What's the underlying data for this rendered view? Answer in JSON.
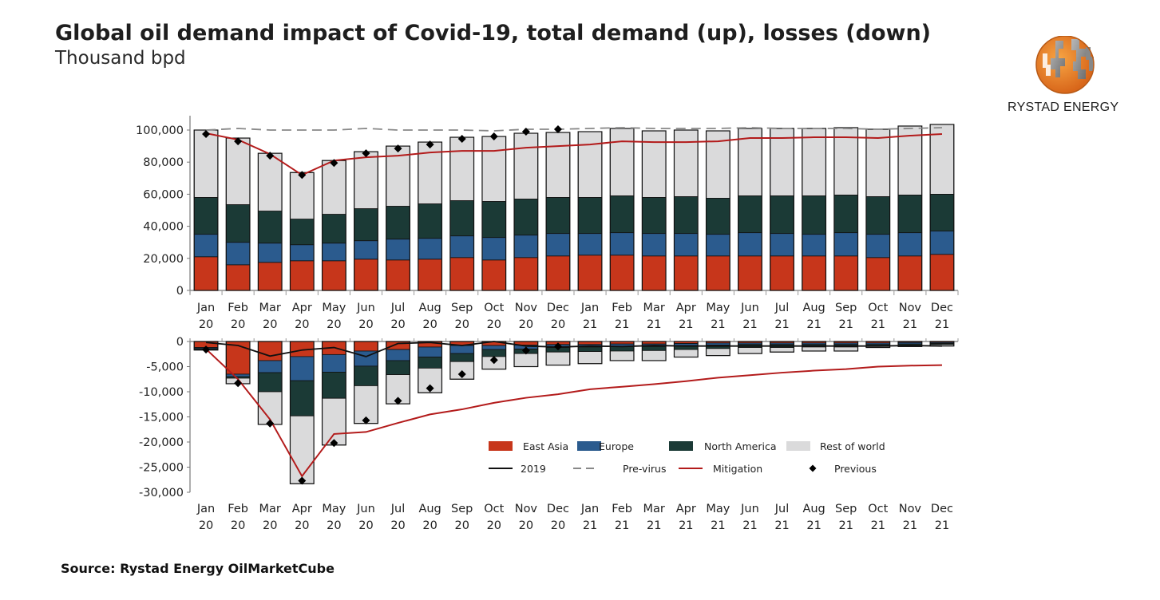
{
  "header": {
    "title": "Global oil demand impact of Covid-19, total demand (up), losses (down)",
    "subtitle": "Thousand bpd"
  },
  "logo": {
    "text": "RYSTAD ENERGY",
    "icon": "rystad-globe-icon"
  },
  "source": "Source: Rystad Energy OilMarketCube",
  "colors": {
    "east_asia": "#c7361b",
    "europe": "#2b5b8e",
    "north_america": "#1b3a36",
    "rest_of_world": "#dadadb",
    "line_2019": "#111111",
    "pre_virus": "#888888",
    "mitigation": "#b31b1b",
    "previous": "#000000"
  },
  "chart_data": [
    {
      "type": "bar",
      "stacked": true,
      "title": "Total demand",
      "ylabel": "Thousand bpd",
      "ylim": [
        0,
        100000
      ],
      "yticks": [
        "0",
        "20,000",
        "40,000",
        "60,000",
        "80,000",
        "100,000"
      ],
      "ytick_values": [
        0,
        20000,
        40000,
        60000,
        80000,
        100000
      ],
      "categories": [
        "Jan 20",
        "Feb 20",
        "Mar 20",
        "Apr 20",
        "May 20",
        "Jun 20",
        "Jul 20",
        "Aug 20",
        "Sep 20",
        "Oct 20",
        "Nov 20",
        "Dec 20",
        "Jan 21",
        "Feb 21",
        "Mar 21",
        "Apr 21",
        "May 21",
        "Jun 21",
        "Jul 21",
        "Aug 21",
        "Sep 21",
        "Oct 21",
        "Nov 21",
        "Dec 21"
      ],
      "category_lines": [
        [
          "Jan",
          "20"
        ],
        [
          "Feb",
          "20"
        ],
        [
          "Mar",
          "20"
        ],
        [
          "Apr",
          "20"
        ],
        [
          "May",
          "20"
        ],
        [
          "Jun",
          "20"
        ],
        [
          "Jul",
          "20"
        ],
        [
          "Aug",
          "20"
        ],
        [
          "Sep",
          "20"
        ],
        [
          "Oct",
          "20"
        ],
        [
          "Nov",
          "20"
        ],
        [
          "Dec",
          "20"
        ],
        [
          "Jan",
          "21"
        ],
        [
          "Feb",
          "21"
        ],
        [
          "Mar",
          "21"
        ],
        [
          "Apr",
          "21"
        ],
        [
          "May",
          "21"
        ],
        [
          "Jun",
          "21"
        ],
        [
          "Jul",
          "21"
        ],
        [
          "Aug",
          "21"
        ],
        [
          "Sep",
          "21"
        ],
        [
          "Oct",
          "21"
        ],
        [
          "Nov",
          "21"
        ],
        [
          "Dec",
          "21"
        ]
      ],
      "series": [
        {
          "name": "East Asia",
          "values": [
            21000,
            16000,
            17500,
            18500,
            18500,
            19500,
            19000,
            19500,
            20500,
            19000,
            20500,
            21500,
            22000,
            22000,
            21500,
            21500,
            21500,
            21500,
            21500,
            21500,
            21500,
            20500,
            21500,
            22500
          ]
        },
        {
          "name": "Europe",
          "values": [
            14000,
            14000,
            12000,
            10000,
            11000,
            11500,
            13000,
            13000,
            13500,
            14000,
            14000,
            14000,
            13500,
            14000,
            14000,
            14000,
            13500,
            14500,
            14000,
            13500,
            14500,
            14500,
            14500,
            14500
          ]
        },
        {
          "name": "North America",
          "values": [
            23000,
            23500,
            20000,
            16000,
            18000,
            20000,
            20500,
            21500,
            22000,
            22500,
            22500,
            22500,
            22500,
            23000,
            22500,
            23000,
            22500,
            23000,
            23500,
            24000,
            23500,
            23500,
            23500,
            23000
          ]
        },
        {
          "name": "Rest of world",
          "values": [
            42000,
            41500,
            36000,
            29000,
            33500,
            35500,
            37500,
            38500,
            39500,
            40500,
            41000,
            40500,
            41000,
            42000,
            41500,
            41500,
            42000,
            42000,
            42000,
            42000,
            42000,
            42000,
            43000,
            43500
          ]
        }
      ],
      "lines": [
        {
          "name": "Pre-virus",
          "style": "dashed",
          "values": [
            100000,
            101000,
            100000,
            100000,
            100000,
            101000,
            100000,
            100000,
            100000,
            99500,
            100500,
            100500,
            101000,
            101500,
            101000,
            101000,
            101000,
            101500,
            101000,
            101000,
            101000,
            100500,
            101000,
            101500
          ]
        },
        {
          "name": "Mitigation",
          "style": "solid",
          "values": [
            98000,
            94000,
            85000,
            72000,
            81000,
            83000,
            84000,
            86000,
            87000,
            87000,
            89000,
            90000,
            91000,
            93000,
            92500,
            92500,
            93000,
            95000,
            95000,
            95500,
            95500,
            95000,
            96500,
            97500
          ]
        }
      ],
      "markers": {
        "name": "Previous",
        "values": [
          97500,
          93000,
          84000,
          72000,
          79500,
          85500,
          88500,
          91000,
          94500,
          96000,
          99000,
          100500,
          null,
          null,
          null,
          null,
          null,
          null,
          null,
          null,
          null,
          null,
          null,
          null
        ]
      }
    },
    {
      "type": "bar",
      "stacked": true,
      "title": "Demand losses",
      "ylabel": "Thousand bpd",
      "ylim": [
        -30000,
        0
      ],
      "yticks": [
        "0",
        "-5,000",
        "-10,000",
        "-15,000",
        "-20,000",
        "-25,000",
        "-30,000"
      ],
      "ytick_values": [
        0,
        -5000,
        -10000,
        -15000,
        -20000,
        -25000,
        -30000
      ],
      "categories": [
        "Jan 20",
        "Feb 20",
        "Mar 20",
        "Apr 20",
        "May 20",
        "Jun 20",
        "Jul 20",
        "Aug 20",
        "Sep 20",
        "Oct 20",
        "Nov 20",
        "Dec 20",
        "Jan 21",
        "Feb 21",
        "Mar 21",
        "Apr 21",
        "May 21",
        "Jun 21",
        "Jul 21",
        "Aug 21",
        "Sep 21",
        "Oct 21",
        "Nov 21",
        "Dec 21"
      ],
      "series": [
        {
          "name": "East Asia",
          "values": [
            -1200,
            -6500,
            -3800,
            -3000,
            -2600,
            -1900,
            -1600,
            -1100,
            -800,
            -800,
            -700,
            -600,
            -600,
            -500,
            -500,
            -400,
            -300,
            -300,
            -300,
            -300,
            -300,
            -300,
            -200,
            -200
          ]
        },
        {
          "name": "Europe",
          "values": [
            -200,
            -500,
            -2400,
            -4800,
            -3500,
            -3000,
            -2200,
            -2000,
            -1600,
            -800,
            -800,
            -600,
            -500,
            -500,
            -500,
            -400,
            -400,
            -300,
            -300,
            -300,
            -300,
            -300,
            -300,
            -200
          ]
        },
        {
          "name": "North America",
          "values": [
            -200,
            -300,
            -3800,
            -7000,
            -5200,
            -3900,
            -2800,
            -2200,
            -1600,
            -1400,
            -900,
            -900,
            -900,
            -900,
            -800,
            -800,
            -700,
            -600,
            -600,
            -500,
            -500,
            -400,
            -300,
            -200
          ]
        },
        {
          "name": "Rest of world",
          "values": [
            -100,
            -1100,
            -6500,
            -13500,
            -9300,
            -7500,
            -5800,
            -4900,
            -3500,
            -2500,
            -2600,
            -2600,
            -2400,
            -1900,
            -2000,
            -1500,
            -1400,
            -1200,
            -900,
            -800,
            -800,
            -200,
            -200,
            -300
          ]
        }
      ],
      "lines": [
        {
          "name": "2019",
          "style": "solid",
          "values": [
            -200,
            -800,
            -2900,
            -1700,
            -1200,
            -3000,
            -400,
            -200,
            -800,
            0,
            -900,
            -1100,
            -900,
            -1000,
            -800,
            -900,
            -900,
            -900,
            -900,
            -900,
            -900,
            -900,
            -800,
            -900
          ]
        },
        {
          "name": "Mitigation",
          "style": "solid",
          "values": [
            -1500,
            -7500,
            -15500,
            -26800,
            -18400,
            -18000,
            -16200,
            -14500,
            -13500,
            -12200,
            -11200,
            -10500,
            -9500,
            -9000,
            -8500,
            -7900,
            -7200,
            -6700,
            -6200,
            -5800,
            -5500,
            -5000,
            -4800,
            -4700
          ]
        }
      ],
      "markers": {
        "name": "Previous",
        "values": [
          -1600,
          -8300,
          -16300,
          -27700,
          -20200,
          -15700,
          -11800,
          -9300,
          -6500,
          -3700,
          -1800,
          -1000,
          null,
          null,
          null,
          null,
          null,
          null,
          null,
          null,
          null,
          null,
          null,
          null
        ]
      },
      "legend": {
        "placement": "bottom-right",
        "items": [
          {
            "label": "East Asia",
            "kind": "box",
            "color_key": "east_asia"
          },
          {
            "label": "Europe",
            "kind": "box",
            "color_key": "europe"
          },
          {
            "label": "North America",
            "kind": "box",
            "color_key": "north_america"
          },
          {
            "label": "Rest of world",
            "kind": "box",
            "color_key": "rest_of_world"
          },
          {
            "label": "2019",
            "kind": "line",
            "color_key": "line_2019"
          },
          {
            "label": "Pre-virus",
            "kind": "dash",
            "color_key": "pre_virus"
          },
          {
            "label": "Mitigation",
            "kind": "line",
            "color_key": "mitigation"
          },
          {
            "label": "Previous",
            "kind": "diamond",
            "color_key": "previous"
          }
        ]
      }
    }
  ]
}
